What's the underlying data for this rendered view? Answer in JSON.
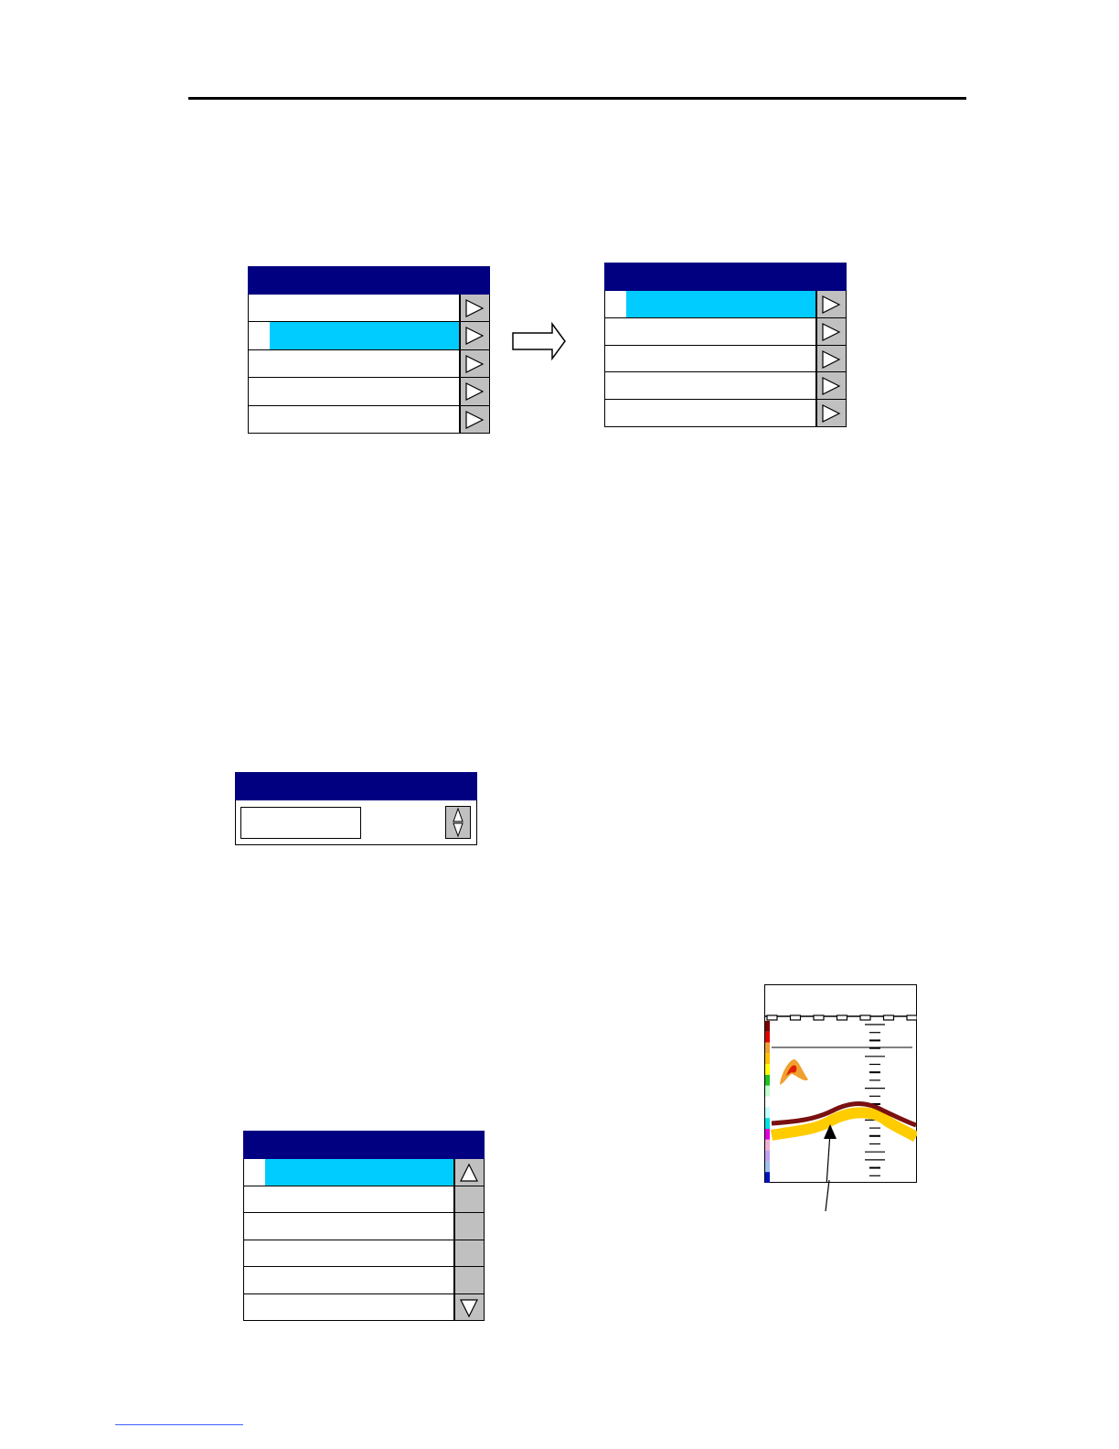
{
  "colors": {
    "header": "#000080",
    "selected": "#00ccff",
    "button": "#c0c0c0"
  },
  "menu_before": {
    "rows": 5,
    "selected_index": 1,
    "row_icon": "play-triangle-icon"
  },
  "transition_icon": "right-arrow-icon",
  "menu_after": {
    "rows": 5,
    "selected_index": 0,
    "row_icon": "play-triangle-icon"
  },
  "spinner_dialog": {
    "value": "",
    "spinner_icon": "up-down-spinner-icon"
  },
  "scroll_list": {
    "rows": 6,
    "selected_index": 0,
    "scroll_up_icon": "up-triangle-icon",
    "scroll_down_icon": "down-triangle-icon"
  },
  "echogram": {
    "color_scale": [
      "#7a0000",
      "#e00000",
      "#f0a030",
      "#ffc000",
      "#ffff00",
      "#20c020",
      "#c0ffd0",
      "#ffffff",
      "#c0ffff",
      "#00e0e0",
      "#e000e0",
      "#f0b0d0",
      "#c0a0f0",
      "#a0c0f0",
      "#0010c0"
    ],
    "bottom_line_color": "#7a1010",
    "bottom_echo_color": "#ffcc00",
    "pointer_icon": "arrow-pointer-icon"
  }
}
